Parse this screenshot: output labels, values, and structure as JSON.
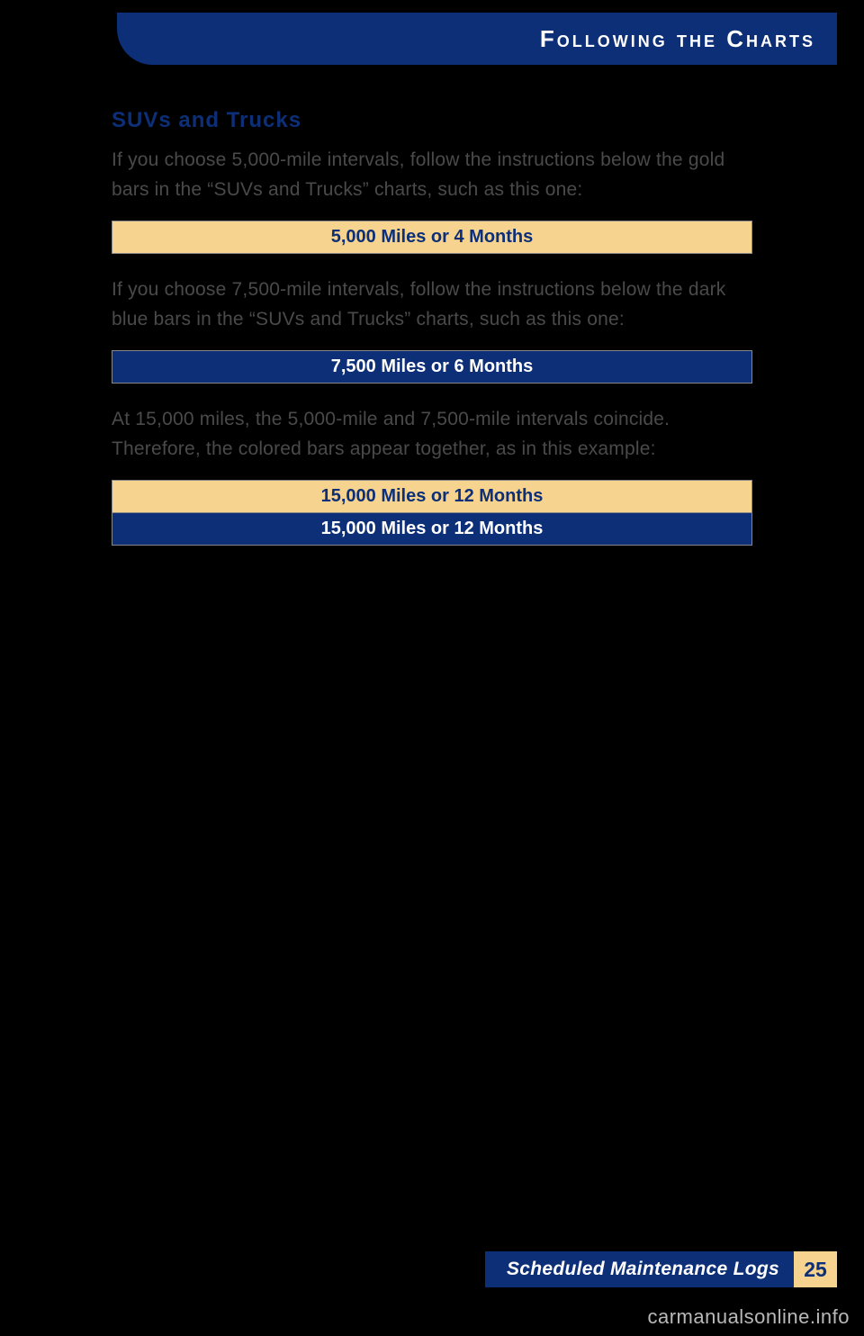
{
  "header": {
    "title": "Following the Charts"
  },
  "content": {
    "section_title": "SUVs and Trucks",
    "para1": "If you choose 5,000-mile intervals, follow the instructions below the gold bars in the “SUVs and Trucks” charts, such as this one:",
    "gold_bar_1": "5,000 Miles or 4 Months",
    "para2": "If you choose 7,500-mile intervals, follow the instructions below the dark blue bars in the “SUVs and Trucks” charts, such as this one:",
    "blue_bar_1": "7,500 Miles or 6 Months",
    "para3": "At 15,000 miles, the 5,000-mile and 7,500-mile intervals coincide. Therefore, the colored bars appear together, as in this example:",
    "combined_gold": "15,000 Miles or 12 Months",
    "combined_blue": "15,000 Miles or 12 Months"
  },
  "footer": {
    "label": "Scheduled Maintenance Logs",
    "page": "25"
  },
  "watermark": "carmanualsonline.info",
  "colors": {
    "page_bg": "#000000",
    "navy": "#0d2f77",
    "gold": "#f6d38f",
    "body_text": "#4a4a4a",
    "watermark": "#b9b9b9"
  }
}
